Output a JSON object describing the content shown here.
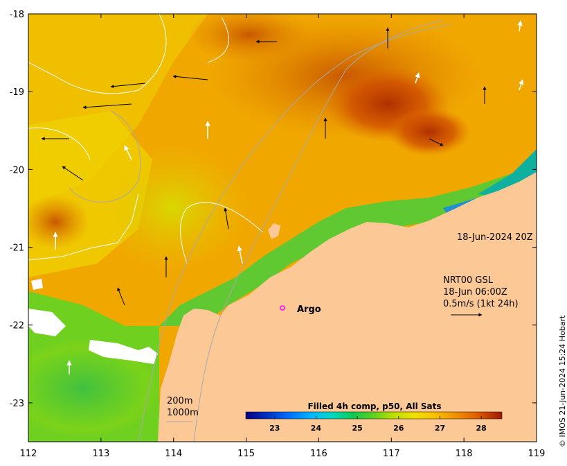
{
  "map": {
    "lon_ticks": [
      "112",
      "113",
      "114",
      "115",
      "116",
      "117",
      "118",
      "119"
    ],
    "lat_ticks": [
      "-18",
      "-19",
      "-20",
      "-21",
      "-22",
      "-23"
    ],
    "lon_range": [
      112,
      119
    ],
    "lat_range": [
      -23.5,
      -18
    ],
    "land_color": "#fcc896",
    "contour_color": "#ffffff",
    "isobath_color": "#a9a9a9"
  },
  "annotations": {
    "timestamp": "18-Jun-2024 20Z",
    "current_source": "NRT00 GSL",
    "current_time": "18-Jun 06:00Z",
    "current_scale": "0.5m/s (1kt 24h)",
    "argo_label": "Argo",
    "isobath_200": "200m",
    "isobath_1000": "1000m",
    "copyright": "© IMOS 21-Jun-2024 15:24 Hobart"
  },
  "colorbar": {
    "title": "Filled 4h comp, p50, All Sats",
    "ticks": [
      "23",
      "24",
      "25",
      "26",
      "27",
      "28"
    ],
    "range": [
      22.3,
      28.5
    ],
    "colors": [
      "#000080",
      "#0040d0",
      "#0090ff",
      "#00d0ff",
      "#00e0a0",
      "#10c840",
      "#60d020",
      "#b8e000",
      "#f0e000",
      "#f8c000",
      "#f09000",
      "#e06000",
      "#c03000",
      "#901000"
    ]
  },
  "argo": {
    "lon": 115.5,
    "lat": -21.78,
    "color": "#ff00ff"
  }
}
